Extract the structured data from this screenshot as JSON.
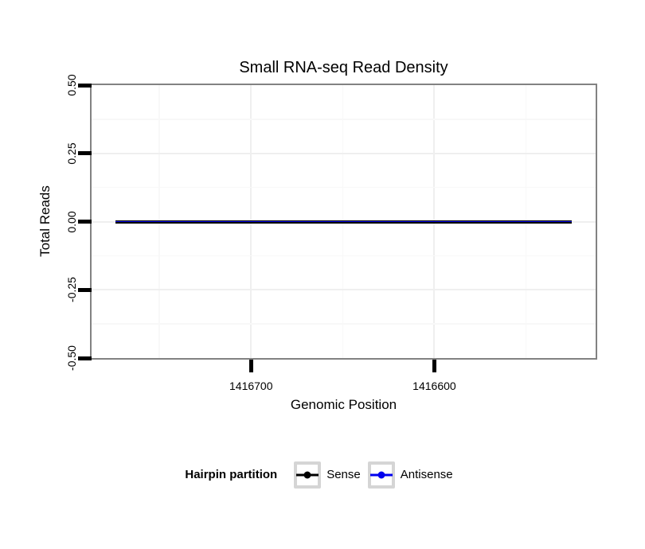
{
  "chart_data": {
    "type": "line",
    "title": "Small RNA-seq Read Density",
    "xlabel": "Genomic Position",
    "ylabel": "Total Reads",
    "xlim": [
      1416787,
      1416512
    ],
    "x_reversed": true,
    "ylim": [
      -0.5,
      0.5
    ],
    "x_ticks": [
      1416700,
      1416600
    ],
    "x_tick_labels": [
      "1416700",
      "1416600"
    ],
    "y_ticks": [
      0.5,
      0.25,
      0,
      -0.25,
      -0.5
    ],
    "y_tick_labels": [
      "0.50",
      "0.25",
      "0.00",
      "-0.25",
      "-0.50"
    ],
    "grid": "major+minor",
    "panel_border_color": "#828282",
    "grid_major_color": "#efefef",
    "grid_minor_color": "#f8f8f8",
    "legend_position": "bottom",
    "series": [
      {
        "name": "Sense",
        "color": "#000000",
        "x": [
          1416774,
          1416525
        ],
        "y": [
          0,
          0
        ]
      },
      {
        "name": "Antisense",
        "color": "#0000EE",
        "x": [
          1416774,
          1416525
        ],
        "y": [
          0,
          0
        ]
      }
    ]
  },
  "legend": {
    "title": "Hairpin partition",
    "items": [
      {
        "label": "Sense",
        "color": "#000000"
      },
      {
        "label": "Antisense",
        "color": "#0000EE"
      }
    ]
  }
}
